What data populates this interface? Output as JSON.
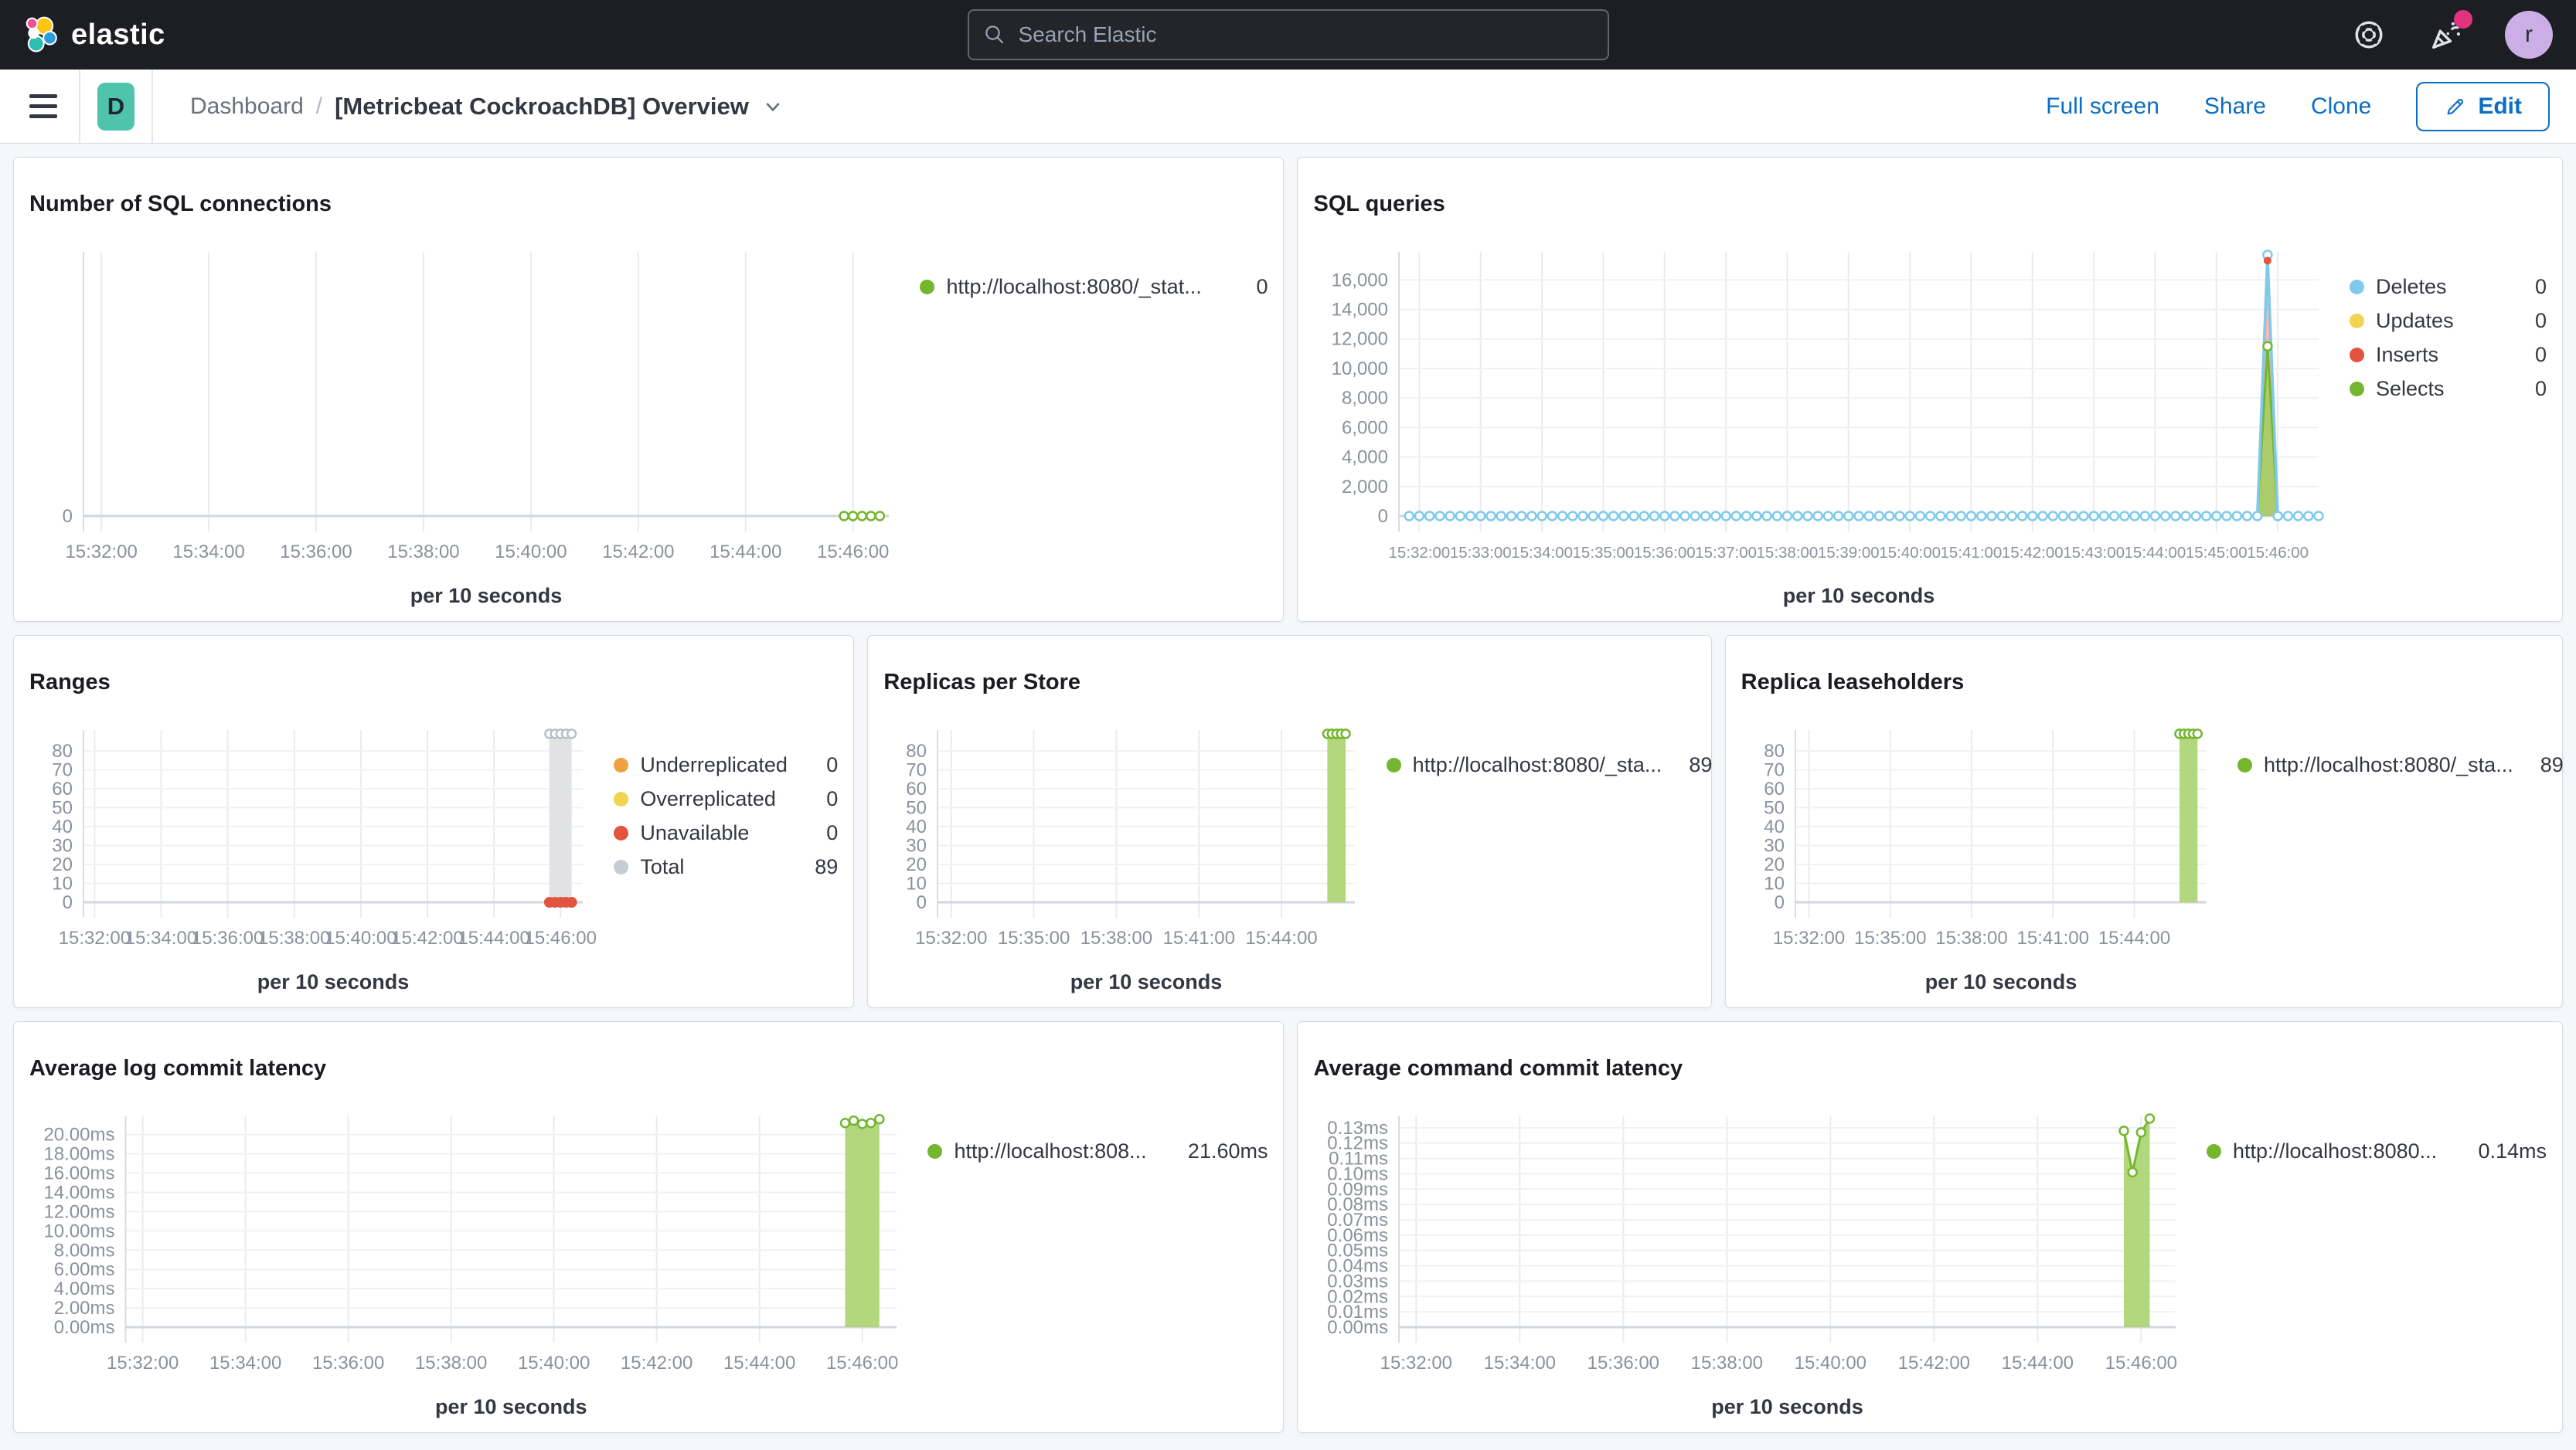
{
  "header": {
    "logo_text": "elastic",
    "search_placeholder": "Search Elastic",
    "avatar_initial": "r",
    "icons": [
      "help-life-buoy-icon",
      "news-party-popper-icon"
    ]
  },
  "toolbar": {
    "app_badge": "D",
    "breadcrumb_parent": "Dashboard",
    "breadcrumb_separator": "/",
    "title": "[Metricbeat CockroachDB] Overview",
    "actions": {
      "full_screen": "Full screen",
      "share": "Share",
      "clone": "Clone",
      "edit": "Edit"
    }
  },
  "colors": {
    "chrome_bg": "#1D1E24",
    "link_blue": "#0B6EC2",
    "badge_teal": "#4FC4AD",
    "series_green": "#74B62E",
    "series_blue": "#7FCAEC",
    "series_yellow": "#F0D44F",
    "series_red": "#E2543E",
    "series_orange": "#EDA23F",
    "series_gray": "#C7CBD2"
  },
  "charts": [
    {
      "title": "Number of SQL connections",
      "type": "line",
      "xlabel": "per 10 seconds",
      "x_domain": [
        "15:31:40",
        "15:46:40"
      ],
      "x_ticks": [
        "15:32:00",
        "15:34:00",
        "15:36:00",
        "15:38:00",
        "15:40:00",
        "15:42:00",
        "15:44:00",
        "15:46:00"
      ],
      "y_max": 10,
      "y_ticks": [
        [
          0,
          "0"
        ]
      ],
      "series": [
        {
          "name": "http://localhost:8080/_stat...",
          "color": "#74B62E",
          "type": "line",
          "line_width": 3,
          "marker": "open",
          "points": [
            [
              "15:45:50",
              0
            ],
            [
              "15:46:00",
              0
            ],
            [
              "15:46:10",
              0
            ],
            [
              "15:46:20",
              0
            ],
            [
              "15:46:30",
              0
            ]
          ]
        }
      ],
      "legend": [
        {
          "label": "http://localhost:8080/_stat...",
          "value": "0",
          "color": "#74B62E"
        }
      ]
    },
    {
      "title": "SQL queries",
      "type": "line",
      "xlabel": "per 10 seconds",
      "x_domain": [
        "15:31:40",
        "15:46:40"
      ],
      "x_ticks": [
        "15:32:00",
        "15:33:00",
        "15:34:00",
        "15:35:00",
        "15:36:00",
        "15:37:00",
        "15:38:00",
        "15:39:00",
        "15:40:00",
        "15:41:00",
        "15:42:00",
        "15:43:00",
        "15:44:00",
        "15:45:00",
        "15:46:00"
      ],
      "y_max": 17900,
      "y_ticks": [
        [
          0,
          "0"
        ],
        [
          2000,
          "2,000"
        ],
        [
          4000,
          "4,000"
        ],
        [
          6000,
          "6,000"
        ],
        [
          8000,
          "8,000"
        ],
        [
          10000,
          "10,000"
        ],
        [
          12000,
          "12,000"
        ],
        [
          14000,
          "14,000"
        ],
        [
          16000,
          "16,000"
        ]
      ],
      "series": [
        {
          "name": "Inserts",
          "color": "#E2543E",
          "type": "area",
          "fill": "#E2543E",
          "fill_opacity": 0.4,
          "line_width": 3,
          "marker": "solid",
          "marker_r": 5,
          "points": [
            [
              "15:45:40",
              0
            ],
            [
              "15:45:50",
              17300
            ],
            [
              "15:46:00",
              0
            ]
          ],
          "marker_points": [
            [
              "15:45:50",
              17300
            ]
          ]
        },
        {
          "name": "Selects",
          "color": "#74B62E",
          "type": "area",
          "fill": "#A3CE63",
          "fill_opacity": 0.9,
          "line_width": 3,
          "marker": "open",
          "points": [
            [
              "15:45:40",
              0
            ],
            [
              "15:45:50",
              11500
            ],
            [
              "15:46:00",
              0
            ]
          ],
          "marker_points": [
            [
              "15:45:50",
              11500
            ]
          ]
        },
        {
          "name": "Deletes",
          "color": "#7FCAEC",
          "type": "line",
          "line_width": 3.5,
          "marker": "open",
          "repeat_zero": {
            "from": "15:31:50",
            "to": "15:46:40",
            "step": 10
          },
          "points": [
            [
              "15:45:50",
              17700
            ]
          ]
        },
        {
          "name": "Updates",
          "color": "#F0D44F",
          "type": "line",
          "points": []
        }
      ],
      "legend": [
        {
          "label": "Deletes",
          "value": "0",
          "color": "#7FCAEC"
        },
        {
          "label": "Updates",
          "value": "0",
          "color": "#F0D44F"
        },
        {
          "label": "Inserts",
          "value": "0",
          "color": "#E2543E"
        },
        {
          "label": "Selects",
          "value": "0",
          "color": "#74B62E"
        }
      ]
    },
    {
      "title": "Ranges",
      "type": "line",
      "xlabel": "per 10 seconds",
      "x_domain": [
        "15:31:40",
        "15:46:40"
      ],
      "x_ticks": [
        "15:32:00",
        "15:34:00",
        "15:36:00",
        "15:38:00",
        "15:40:00",
        "15:42:00",
        "15:44:00",
        "15:46:00"
      ],
      "y_max": 91,
      "y_ticks": [
        [
          0,
          "0"
        ],
        [
          10,
          "10"
        ],
        [
          20,
          "20"
        ],
        [
          30,
          "30"
        ],
        [
          40,
          "40"
        ],
        [
          50,
          "50"
        ],
        [
          60,
          "60"
        ],
        [
          70,
          "70"
        ],
        [
          80,
          "80"
        ]
      ],
      "series": [
        {
          "name": "Total",
          "color": "#B9BEC7",
          "type": "area",
          "fill": "#DEE0E4",
          "fill_opacity": 0.95,
          "line_width": 0,
          "marker": "open",
          "points": [
            [
              "15:45:40",
              89
            ],
            [
              "15:45:50",
              89
            ],
            [
              "15:46:00",
              89
            ],
            [
              "15:46:10",
              89
            ],
            [
              "15:46:20",
              89
            ]
          ]
        },
        {
          "name": "Unavailable",
          "color": "#E2543E",
          "type": "line",
          "line_width": 8,
          "marker": "solid",
          "marker_r": 7,
          "points": [
            [
              "15:45:40",
              0
            ],
            [
              "15:45:50",
              0
            ],
            [
              "15:46:00",
              0
            ],
            [
              "15:46:10",
              0
            ],
            [
              "15:46:20",
              0
            ]
          ]
        },
        {
          "name": "Underreplicated",
          "color": "#EDA23F",
          "type": "line",
          "points": []
        },
        {
          "name": "Overreplicated",
          "color": "#F0D44F",
          "type": "line",
          "points": []
        }
      ],
      "legend": [
        {
          "label": "Underreplicated",
          "value": "0",
          "color": "#EDA23F"
        },
        {
          "label": "Overreplicated",
          "value": "0",
          "color": "#F0D44F"
        },
        {
          "label": "Unavailable",
          "value": "0",
          "color": "#E2543E"
        },
        {
          "label": "Total",
          "value": "89",
          "color": "#C7CBD2"
        }
      ]
    },
    {
      "title": "Replicas per Store",
      "type": "line",
      "xlabel": "per 10 seconds",
      "x_domain": [
        "15:31:30",
        "15:46:40"
      ],
      "x_ticks": [
        "15:32:00",
        "15:35:00",
        "15:38:00",
        "15:41:00",
        "15:44:00"
      ],
      "y_max": 91,
      "y_ticks": [
        [
          0,
          "0"
        ],
        [
          10,
          "10"
        ],
        [
          20,
          "20"
        ],
        [
          30,
          "30"
        ],
        [
          40,
          "40"
        ],
        [
          50,
          "50"
        ],
        [
          60,
          "60"
        ],
        [
          70,
          "70"
        ],
        [
          80,
          "80"
        ]
      ],
      "series": [
        {
          "name": "http://localhost:8080/_sta...",
          "color": "#74B62E",
          "type": "area",
          "fill": "#ABD36F",
          "fill_opacity": 0.9,
          "line_width": 0,
          "marker": "open",
          "points": [
            [
              "15:45:40",
              89
            ],
            [
              "15:45:50",
              89
            ],
            [
              "15:46:00",
              89
            ],
            [
              "15:46:10",
              89
            ],
            [
              "15:46:20",
              89
            ]
          ]
        }
      ],
      "legend": [
        {
          "label": "http://localhost:8080/_sta...",
          "value": "89",
          "color": "#74B62E"
        }
      ]
    },
    {
      "title": "Replica leaseholders",
      "type": "line",
      "xlabel": "per 10 seconds",
      "x_domain": [
        "15:31:30",
        "15:46:40"
      ],
      "x_ticks": [
        "15:32:00",
        "15:35:00",
        "15:38:00",
        "15:41:00",
        "15:44:00"
      ],
      "y_max": 91,
      "y_ticks": [
        [
          0,
          "0"
        ],
        [
          10,
          "10"
        ],
        [
          20,
          "20"
        ],
        [
          30,
          "30"
        ],
        [
          40,
          "40"
        ],
        [
          50,
          "50"
        ],
        [
          60,
          "60"
        ],
        [
          70,
          "70"
        ],
        [
          80,
          "80"
        ]
      ],
      "series": [
        {
          "name": "http://localhost:8080/_sta...",
          "color": "#74B62E",
          "type": "area",
          "fill": "#ABD36F",
          "fill_opacity": 0.9,
          "line_width": 0,
          "marker": "open",
          "points": [
            [
              "15:45:40",
              89
            ],
            [
              "15:45:50",
              89
            ],
            [
              "15:46:00",
              89
            ],
            [
              "15:46:10",
              89
            ],
            [
              "15:46:20",
              89
            ]
          ]
        }
      ],
      "legend": [
        {
          "label": "http://localhost:8080/_sta...",
          "value": "89",
          "color": "#74B62E"
        }
      ]
    },
    {
      "title": "Average log commit latency",
      "type": "line",
      "xlabel": "per 10 seconds",
      "x_domain": [
        "15:31:40",
        "15:46:40"
      ],
      "x_ticks": [
        "15:32:00",
        "15:34:00",
        "15:36:00",
        "15:38:00",
        "15:40:00",
        "15:42:00",
        "15:44:00",
        "15:46:00"
      ],
      "y_max": 21.9,
      "y_ticks": [
        [
          0,
          "0.00ms"
        ],
        [
          2,
          "2.00ms"
        ],
        [
          4,
          "4.00ms"
        ],
        [
          6,
          "6.00ms"
        ],
        [
          8,
          "8.00ms"
        ],
        [
          10,
          "10.00ms"
        ],
        [
          12,
          "12.00ms"
        ],
        [
          14,
          "14.00ms"
        ],
        [
          16,
          "16.00ms"
        ],
        [
          18,
          "18.00ms"
        ],
        [
          20,
          "20.00ms"
        ]
      ],
      "series": [
        {
          "name": "http://localhost:808...",
          "color": "#74B62E",
          "type": "area",
          "fill": "#ABD36F",
          "fill_opacity": 0.9,
          "line_width": 3,
          "marker": "open",
          "points": [
            [
              "15:45:40",
              21.2
            ],
            [
              "15:45:50",
              21.45
            ],
            [
              "15:46:00",
              21.1
            ],
            [
              "15:46:10",
              21.2
            ],
            [
              "15:46:20",
              21.6
            ]
          ]
        }
      ],
      "legend": [
        {
          "label": "http://localhost:808...",
          "value": "21.60ms",
          "color": "#74B62E"
        }
      ]
    },
    {
      "title": "Average command commit latency",
      "type": "line",
      "xlabel": "per 10 seconds",
      "x_domain": [
        "15:31:40",
        "15:46:40"
      ],
      "x_ticks": [
        "15:32:00",
        "15:34:00",
        "15:36:00",
        "15:38:00",
        "15:40:00",
        "15:42:00",
        "15:44:00",
        "15:46:00"
      ],
      "y_max": 0.1375,
      "y_ticks": [
        [
          0,
          "0.00ms"
        ],
        [
          0.01,
          "0.01ms"
        ],
        [
          0.02,
          "0.02ms"
        ],
        [
          0.03,
          "0.03ms"
        ],
        [
          0.04,
          "0.04ms"
        ],
        [
          0.05,
          "0.05ms"
        ],
        [
          0.06,
          "0.06ms"
        ],
        [
          0.07,
          "0.07ms"
        ],
        [
          0.08,
          "0.08ms"
        ],
        [
          0.09,
          "0.09ms"
        ],
        [
          0.1,
          "0.10ms"
        ],
        [
          0.11,
          "0.11ms"
        ],
        [
          0.12,
          "0.12ms"
        ],
        [
          0.13,
          "0.13ms"
        ]
      ],
      "series": [
        {
          "name": "http://localhost:8080...",
          "color": "#74B62E",
          "type": "area",
          "fill": "#ABD36F",
          "fill_opacity": 0.9,
          "line_width": 3,
          "marker": "open",
          "points": [
            [
              "15:45:40",
              0.128
            ],
            [
              "15:45:50",
              0.101
            ],
            [
              "15:46:00",
              0.127
            ],
            [
              "15:46:10",
              0.136
            ]
          ]
        }
      ],
      "legend": [
        {
          "label": "http://localhost:8080...",
          "value": "0.14ms",
          "color": "#74B62E"
        }
      ]
    }
  ]
}
